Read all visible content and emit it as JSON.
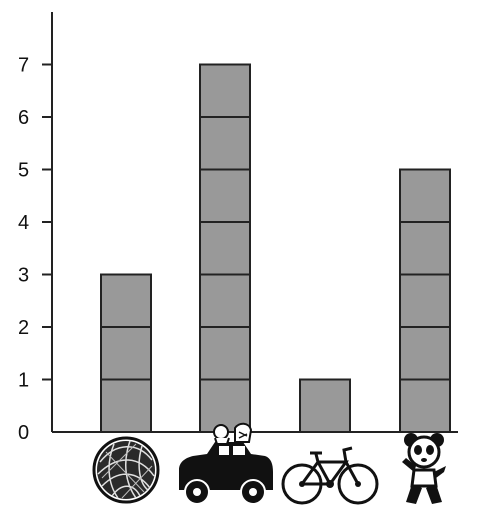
{
  "chart_data": {
    "type": "bar",
    "categories": [
      "yarn-ball",
      "toy-car",
      "bicycle",
      "teddy-bear"
    ],
    "category_icons": [
      "yarn-ball-icon",
      "toy-car-icon",
      "bicycle-icon",
      "teddy-bear-icon"
    ],
    "values": [
      3,
      7,
      1,
      5
    ],
    "yticks": [
      "0",
      "1",
      "2",
      "3",
      "4",
      "5",
      "6",
      "7"
    ],
    "ylim": [
      0,
      7.8
    ],
    "title": "",
    "xlabel": "",
    "ylabel": "",
    "grid": false,
    "bar_style": "stacked-unit-squares",
    "colors": {
      "bar_fill": "#999999",
      "bar_stroke": "#222222",
      "axis": "#222222"
    }
  }
}
